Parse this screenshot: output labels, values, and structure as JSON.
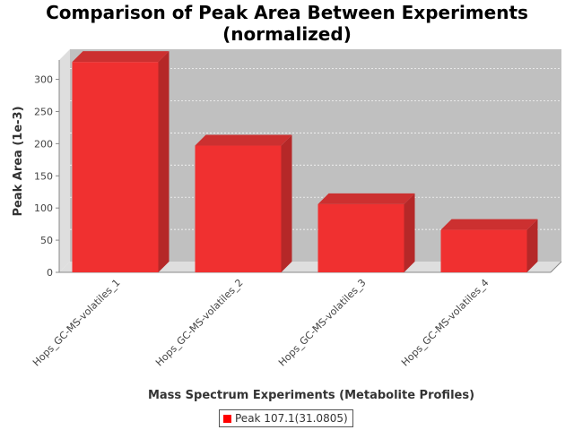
{
  "chart_data": {
    "type": "bar",
    "title": "Comparison of Peak Area Between Experiments (normalized)",
    "title_lines": [
      "Comparison of Peak Area Between Experiments",
      "(normalized)"
    ],
    "xlabel": "Mass Spectrum Experiments (Metabolite Profiles)",
    "ylabel": "Peak Area (1e-3)",
    "categories": [
      "Hops_GC-MS-volatiles_1",
      "Hops_GC-MS-volatiles_2",
      "Hops_GC-MS-volatiles_3",
      "Hops_GC-MS-volatiles_4"
    ],
    "series": [
      {
        "name": "Peak 107.1(31.0805)",
        "values": [
          327,
          197,
          106,
          66
        ]
      }
    ],
    "ylim": [
      0,
      330
    ],
    "yticks": [
      0,
      50,
      100,
      150,
      200,
      250,
      300
    ],
    "grid": true,
    "legend": "bottom",
    "style": "3d"
  },
  "colors": {
    "bar_front": "#f03030",
    "bar_side": "#b52828",
    "bar_top": "#cc3030",
    "plot_back": "#c0c0c0",
    "plot_wall": "#dedede",
    "legend_swatch": "#ff0000"
  }
}
